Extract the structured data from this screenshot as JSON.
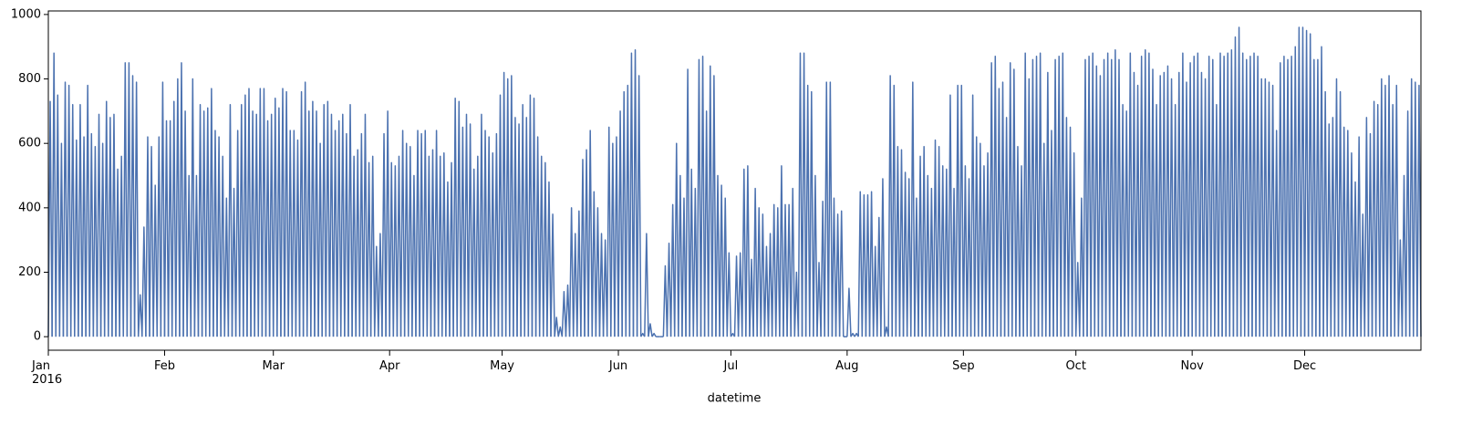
{
  "chart_data": {
    "type": "line",
    "x_label": "datetime",
    "color": "#4c72b0",
    "xlim": [
      0,
      366
    ],
    "ylim": [
      -42,
      1011
    ],
    "xticks": [
      {
        "value": 0,
        "label": "Jan\n2016"
      },
      {
        "value": 31,
        "label": "Feb"
      },
      {
        "value": 60,
        "label": "Mar"
      },
      {
        "value": 91,
        "label": "Apr"
      },
      {
        "value": 121,
        "label": "May"
      },
      {
        "value": 152,
        "label": "Jun"
      },
      {
        "value": 182,
        "label": "Jul"
      },
      {
        "value": 213,
        "label": "Aug"
      },
      {
        "value": 244,
        "label": "Sep"
      },
      {
        "value": 274,
        "label": "Oct"
      },
      {
        "value": 305,
        "label": "Nov"
      },
      {
        "value": 335,
        "label": "Dec"
      }
    ],
    "yticks": [
      0,
      200,
      400,
      600,
      800,
      1000
    ],
    "x": [
      0,
      1,
      2,
      3,
      4,
      5,
      6,
      7,
      8,
      9,
      10,
      11,
      12,
      13,
      14,
      15,
      16,
      17,
      18,
      19,
      20,
      21,
      22,
      23,
      24,
      25,
      26,
      27,
      28,
      29,
      30,
      31,
      32,
      33,
      34,
      35,
      36,
      37,
      38,
      39,
      40,
      41,
      42,
      43,
      44,
      45,
      46,
      47,
      48,
      49,
      50,
      51,
      52,
      53,
      54,
      55,
      56,
      57,
      58,
      59,
      60,
      61,
      62,
      63,
      64,
      65,
      66,
      67,
      68,
      69,
      70,
      71,
      72,
      73,
      74,
      75,
      76,
      77,
      78,
      79,
      80,
      81,
      82,
      83,
      84,
      85,
      86,
      87,
      88,
      89,
      90,
      91,
      92,
      93,
      94,
      95,
      96,
      97,
      98,
      99,
      100,
      101,
      102,
      103,
      104,
      105,
      106,
      107,
      108,
      109,
      110,
      111,
      112,
      113,
      114,
      115,
      116,
      117,
      118,
      119,
      120,
      121,
      122,
      123,
      124,
      125,
      126,
      127,
      128,
      129,
      130,
      131,
      132,
      133,
      134,
      135,
      136,
      137,
      138,
      139,
      140,
      141,
      142,
      143,
      144,
      145,
      146,
      147,
      148,
      149,
      150,
      151,
      152,
      153,
      154,
      155,
      156,
      157,
      158,
      159,
      160,
      161,
      162,
      163,
      164,
      165,
      166,
      167,
      168,
      169,
      170,
      171,
      172,
      173,
      174,
      175,
      176,
      177,
      178,
      179,
      180,
      181,
      182,
      183,
      184,
      185,
      186,
      187,
      188,
      189,
      190,
      191,
      192,
      193,
      194,
      195,
      196,
      197,
      198,
      199,
      200,
      201,
      202,
      203,
      204,
      205,
      206,
      207,
      208,
      209,
      210,
      211,
      212,
      213,
      214,
      215,
      216,
      217,
      218,
      219,
      220,
      221,
      222,
      223,
      224,
      225,
      226,
      227,
      228,
      229,
      230,
      231,
      232,
      233,
      234,
      235,
      236,
      237,
      238,
      239,
      240,
      241,
      242,
      243,
      244,
      245,
      246,
      247,
      248,
      249,
      250,
      251,
      252,
      253,
      254,
      255,
      256,
      257,
      258,
      259,
      260,
      261,
      262,
      263,
      264,
      265,
      266,
      267,
      268,
      269,
      270,
      271,
      272,
      273,
      274,
      275,
      276,
      277,
      278,
      279,
      280,
      281,
      282,
      283,
      284,
      285,
      286,
      287,
      288,
      289,
      290,
      291,
      292,
      293,
      294,
      295,
      296,
      297,
      298,
      299,
      300,
      301,
      302,
      303,
      304,
      305,
      306,
      307,
      308,
      309,
      310,
      311,
      312,
      313,
      314,
      315,
      316,
      317,
      318,
      319,
      320,
      321,
      322,
      323,
      324,
      325,
      326,
      327,
      328,
      329,
      330,
      331,
      332,
      333,
      334,
      335,
      336,
      337,
      338,
      339,
      340,
      341,
      342,
      343,
      344,
      345,
      346,
      347,
      348,
      349,
      350,
      351,
      352,
      353,
      354,
      355,
      356,
      357,
      358,
      359,
      360,
      361,
      362,
      363,
      364,
      365
    ],
    "values": [
      730,
      880,
      750,
      600,
      790,
      780,
      720,
      610,
      720,
      620,
      780,
      630,
      590,
      690,
      600,
      730,
      680,
      690,
      520,
      560,
      850,
      850,
      810,
      790,
      130,
      340,
      620,
      590,
      470,
      620,
      790,
      670,
      670,
      730,
      800,
      850,
      700,
      500,
      800,
      500,
      720,
      700,
      710,
      770,
      640,
      620,
      560,
      430,
      720,
      460,
      640,
      720,
      750,
      770,
      700,
      690,
      770,
      770,
      670,
      690,
      740,
      710,
      770,
      760,
      640,
      640,
      610,
      760,
      790,
      700,
      730,
      700,
      600,
      720,
      730,
      690,
      640,
      670,
      690,
      630,
      720,
      560,
      580,
      630,
      690,
      540,
      560,
      280,
      320,
      630,
      700,
      540,
      530,
      560,
      640,
      600,
      590,
      500,
      640,
      630,
      640,
      560,
      580,
      640,
      560,
      570,
      480,
      540,
      740,
      730,
      650,
      690,
      660,
      520,
      560,
      690,
      640,
      620,
      570,
      630,
      750,
      820,
      800,
      810,
      680,
      660,
      720,
      680,
      750,
      740,
      620,
      560,
      540,
      480,
      380,
      60,
      30,
      140,
      160,
      400,
      320,
      390,
      550,
      580,
      640,
      450,
      400,
      320,
      300,
      650,
      600,
      620,
      700,
      760,
      780,
      880,
      890,
      810,
      10,
      320,
      40,
      10,
      0,
      0,
      220,
      290,
      410,
      600,
      500,
      430,
      830,
      520,
      460,
      860,
      870,
      700,
      840,
      810,
      500,
      470,
      430,
      260,
      10,
      250,
      260,
      520,
      530,
      240,
      460,
      400,
      380,
      280,
      320,
      410,
      400,
      530,
      410,
      410,
      460,
      200,
      880,
      880,
      780,
      760,
      500,
      230,
      420,
      790,
      790,
      430,
      380,
      390,
      0,
      150,
      10,
      10,
      450,
      440,
      440,
      450,
      280,
      370,
      490,
      30,
      810,
      780,
      590,
      580,
      510,
      490,
      790,
      430,
      560,
      590,
      500,
      460,
      610,
      590,
      530,
      520,
      750,
      460,
      780,
      780,
      530,
      490,
      750,
      620,
      600,
      530,
      570,
      850,
      870,
      770,
      790,
      680,
      850,
      830,
      590,
      530,
      880,
      800,
      860,
      870,
      880,
      600,
      820,
      640,
      860,
      870,
      880,
      680,
      650,
      570,
      230,
      430,
      860,
      870,
      880,
      840,
      810,
      860,
      880,
      860,
      890,
      860,
      720,
      700,
      880,
      820,
      780,
      870,
      890,
      880,
      830,
      720,
      810,
      820,
      840,
      800,
      720,
      820,
      880,
      790,
      850,
      870,
      880,
      820,
      800,
      870,
      860,
      720,
      880,
      870,
      880,
      890,
      930,
      960,
      880,
      860,
      870,
      880,
      870,
      800,
      800,
      790,
      780,
      640,
      850,
      870,
      860,
      870,
      900,
      960,
      960,
      950,
      940,
      860,
      860,
      900,
      760,
      660,
      680,
      800,
      760,
      650,
      640,
      570,
      480,
      620,
      380,
      680,
      630,
      730,
      720,
      800,
      780,
      810,
      720,
      780,
      300,
      500,
      700,
      800,
      790,
      780
    ]
  }
}
